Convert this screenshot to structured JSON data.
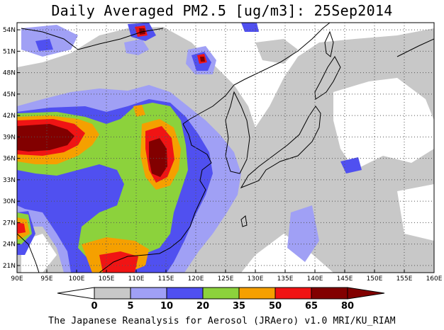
{
  "title": "Daily Averaged PM2.5 [ug/m3]: 25Sep2014",
  "footer": "The Japanese Reanalysis for Aerosol (JRAero) v1.0 MRI/KU_RIAM",
  "map": {
    "lon_range": [
      90,
      160
    ],
    "lat_range": [
      20,
      55
    ],
    "lon_ticks": [
      "90E",
      "95E",
      "100E",
      "105E",
      "110E",
      "115E",
      "120E",
      "125E",
      "130E",
      "135E",
      "140E",
      "145E",
      "150E",
      "155E",
      "160E"
    ],
    "lat_ticks": [
      "21N",
      "24N",
      "27N",
      "30N",
      "33N",
      "36N",
      "39N",
      "42N",
      "45N",
      "48N",
      "51N",
      "54N"
    ]
  },
  "colorbar": {
    "levels": [
      "0",
      "5",
      "10",
      "20",
      "35",
      "50",
      "65",
      "80"
    ],
    "colors": [
      "#ffffff",
      "#c8c8c8",
      "#a0a0f5",
      "#5050f0",
      "#8cd23c",
      "#f5a000",
      "#f01414",
      "#820000"
    ]
  }
}
